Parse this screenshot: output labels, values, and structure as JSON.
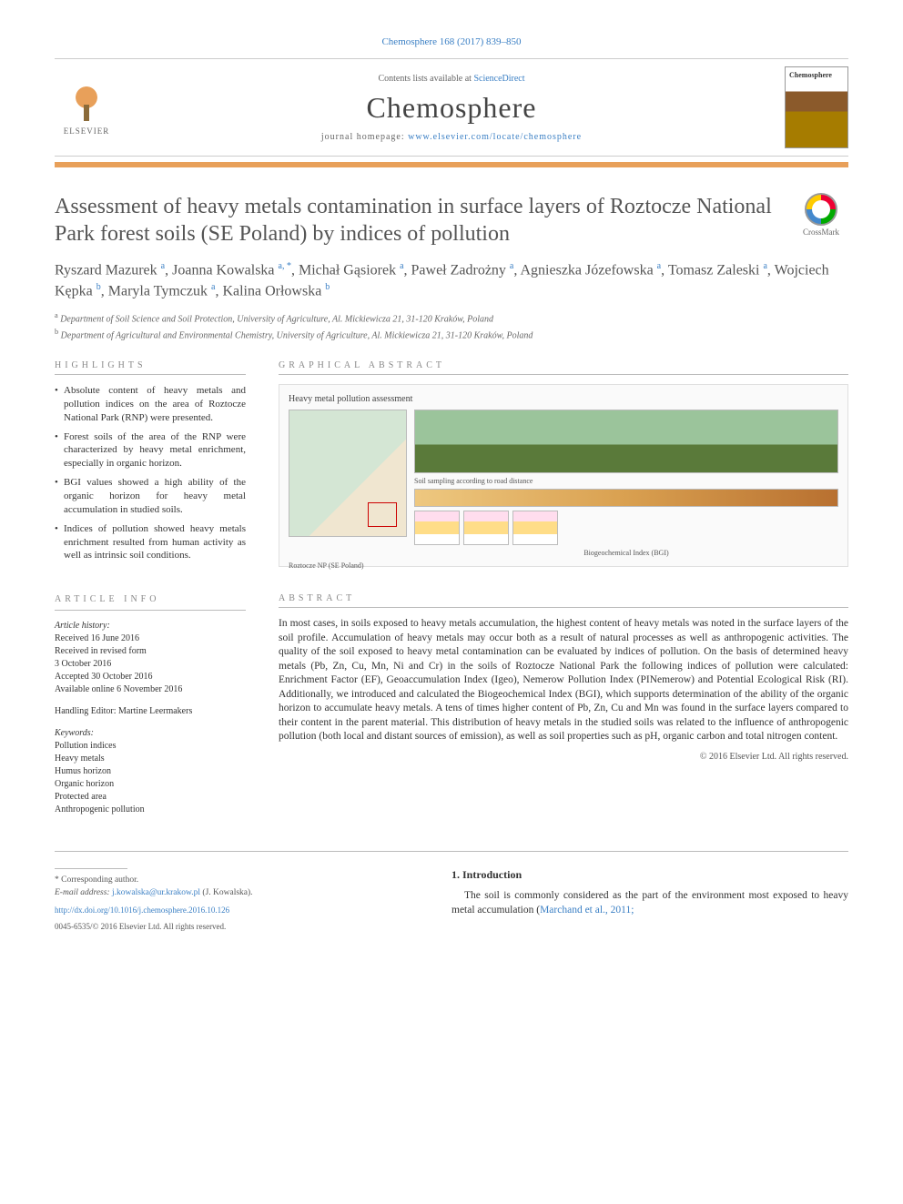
{
  "citation": "Chemosphere 168 (2017) 839–850",
  "header": {
    "contents_prefix": "Contents lists available at ",
    "contents_link": "ScienceDirect",
    "journal": "Chemosphere",
    "homepage_prefix": "journal homepage: ",
    "homepage_url": "www.elsevier.com/locate/chemosphere",
    "publisher": "ELSEVIER",
    "cover_label": "Chemosphere"
  },
  "crossmark_label": "CrossMark",
  "title": "Assessment of heavy metals contamination in surface layers of Roztocze National Park forest soils (SE Poland) by indices of pollution",
  "authors_html": "Ryszard Mazurek <sup>a</sup>, Joanna Kowalska <sup>a, *</sup>, Michał Gąsiorek <sup>a</sup>, Paweł Zadrożny <sup>a</sup>, Agnieszka Józefowska <sup>a</sup>, Tomasz Zaleski <sup>a</sup>, Wojciech Kępka <sup>b</sup>, Maryla Tymczuk <sup>a</sup>, Kalina Orłowska <sup>b</sup>",
  "affiliations": [
    {
      "sup": "a",
      "text": "Department of Soil Science and Soil Protection, University of Agriculture, Al. Mickiewicza 21, 31-120 Kraków, Poland"
    },
    {
      "sup": "b",
      "text": "Department of Agricultural and Environmental Chemistry, University of Agriculture, Al. Mickiewicza 21, 31-120 Kraków, Poland"
    }
  ],
  "highlights_label": "HIGHLIGHTS",
  "highlights": [
    "Absolute content of heavy metals and pollution indices on the area of Roztocze National Park (RNP) were presented.",
    "Forest soils of the area of the RNP were characterized by heavy metal enrichment, especially in organic horizon.",
    "BGI values showed a high ability of the organic horizon for heavy metal accumulation in studied soils.",
    "Indices of pollution showed heavy metals enrichment resulted from human activity as well as intrinsic soil conditions."
  ],
  "ga_label": "GRAPHICAL ABSTRACT",
  "ga": {
    "title": "Heavy metal pollution assessment",
    "map_caption": "Roztocze NP (SE Poland)",
    "sub1": "Soil sampling according to road distance",
    "sub2": "Biogeochemical Index (BGI)"
  },
  "article_info_label": "ARTICLE INFO",
  "history_label": "Article history:",
  "history": [
    "Received 16 June 2016",
    "Received in revised form",
    "3 October 2016",
    "Accepted 30 October 2016",
    "Available online 6 November 2016"
  ],
  "handling_editor": "Handling Editor: Martine Leermakers",
  "keywords_label": "Keywords:",
  "keywords": [
    "Pollution indices",
    "Heavy metals",
    "Humus horizon",
    "Organic horizon",
    "Protected area",
    "Anthropogenic pollution"
  ],
  "abstract_label": "ABSTRACT",
  "abstract": "In most cases, in soils exposed to heavy metals accumulation, the highest content of heavy metals was noted in the surface layers of the soil profile. Accumulation of heavy metals may occur both as a result of natural processes as well as anthropogenic activities. The quality of the soil exposed to heavy metal contamination can be evaluated by indices of pollution. On the basis of determined heavy metals (Pb, Zn, Cu, Mn, Ni and Cr) in the soils of Roztocze National Park the following indices of pollution were calculated: Enrichment Factor (EF), Geoaccumulation Index (Igeo), Nemerow Pollution Index (PINemerow) and Potential Ecological Risk (RI). Additionally, we introduced and calculated the Biogeochemical Index (BGI), which supports determination of the ability of the organic horizon to accumulate heavy metals. A tens of times higher content of Pb, Zn, Cu and Mn was found in the surface layers compared to their content in the parent material. This distribution of heavy metals in the studied soils was related to the influence of anthropogenic pollution (both local and distant sources of emission), as well as soil properties such as pH, organic carbon and total nitrogen content.",
  "copyright": "© 2016 Elsevier Ltd. All rights reserved.",
  "intro_heading": "1.  Introduction",
  "intro_text_pre": "The soil is commonly considered as the part of the environment most exposed to heavy metal accumulation (",
  "intro_link": "Marchand et al., 2011;",
  "corresponding": {
    "label": "* Corresponding author.",
    "email_label": "E-mail address: ",
    "email": "j.kowalska@ur.krakow.pl",
    "email_person": " (J. Kowalska)."
  },
  "doi_link": "http://dx.doi.org/10.1016/j.chemosphere.2016.10.126",
  "issn_line": "0045-6535/© 2016 Elsevier Ltd. All rights reserved."
}
